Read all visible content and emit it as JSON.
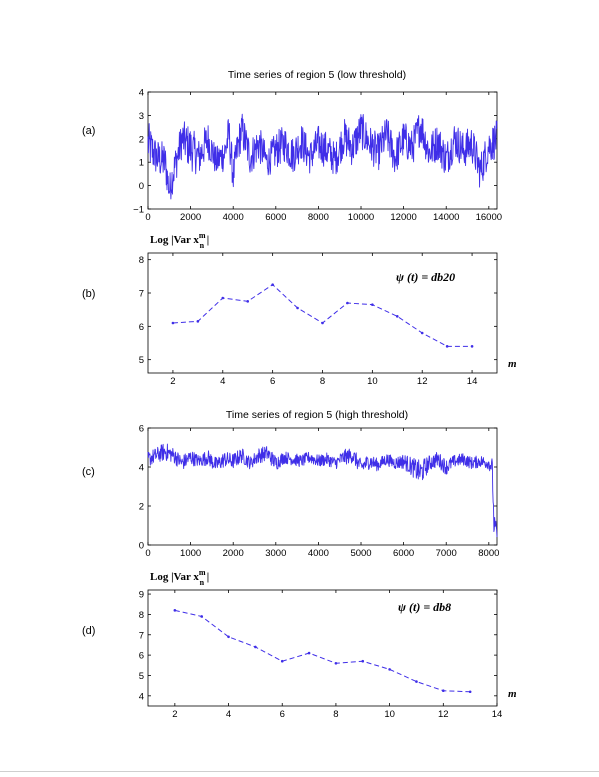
{
  "colors": {
    "series": "#3f2ee8",
    "axis": "#000000"
  },
  "chart_data": [
    {
      "panel_label": "(a)",
      "type": "line",
      "title": "Time series of region 5 (low threshold)",
      "xlim": [
        0,
        16384
      ],
      "ylim": [
        -1,
        4
      ],
      "xticks": [
        0,
        2000,
        4000,
        6000,
        8000,
        10000,
        12000,
        14000,
        16000
      ],
      "xtick_labels": [
        "0",
        "2000",
        "4000",
        "6000",
        "8000",
        "10000",
        "12000",
        "14000",
        "16000"
      ],
      "yticks": [
        -1,
        0,
        1,
        2,
        3,
        4
      ],
      "ytick_labels": [
        "−1",
        "0",
        "1",
        "2",
        "3",
        "4"
      ],
      "series": [
        {
          "x": [
            0,
            400,
            800,
            1000,
            1200,
            1600,
            2000,
            2400,
            2800,
            3200,
            3600,
            3800,
            4000,
            4200,
            4400,
            4800,
            5200,
            5600,
            6000,
            6400,
            6800,
            7200,
            7600,
            8000,
            8400,
            8800,
            9200,
            9600,
            10000,
            10400,
            10800,
            11200,
            11600,
            12000,
            12400,
            12800,
            13200,
            13600,
            14000,
            14400,
            14800,
            15200,
            15600,
            16000,
            16384
          ],
          "y": [
            1.8,
            1.2,
            1.0,
            -0.2,
            0.6,
            2.0,
            1.6,
            1.2,
            2.0,
            1.0,
            1.4,
            2.2,
            0.4,
            1.6,
            2.4,
            1.2,
            1.8,
            1.0,
            1.5,
            1.8,
            1.3,
            1.9,
            1.2,
            1.8,
            1.5,
            1.1,
            2.1,
            1.6,
            2.4,
            1.8,
            1.4,
            2.2,
            1.2,
            2.0,
            1.6,
            2.6,
            1.4,
            1.9,
            1.1,
            2.0,
            1.5,
            1.8,
            0.6,
            1.7,
            2.0
          ],
          "noise": [
            1.2,
            1.0,
            1.1,
            0.8,
            1.0,
            1.0,
            1.2,
            1.0,
            1.0,
            0.8,
            1.0,
            1.1,
            0.9,
            1.0,
            1.0,
            1.0,
            1.0,
            0.8,
            1.0,
            1.0,
            1.0,
            1.0,
            0.9,
            1.0,
            1.0,
            0.9,
            1.0,
            1.0,
            1.0,
            1.0,
            1.0,
            1.0,
            1.0,
            1.0,
            1.0,
            1.0,
            1.0,
            1.0,
            1.0,
            1.0,
            1.0,
            1.0,
            1.0,
            1.0,
            1.0
          ]
        }
      ]
    },
    {
      "panel_label": "(b)",
      "type": "line",
      "ylabel_main": "Log |Var x",
      "ylabel_sup": "m",
      "ylabel_sub": "n",
      "ylabel_end": " |",
      "xlabel": "m",
      "annotation": "ψ (t) = db20",
      "xlim": [
        1,
        15
      ],
      "ylim": [
        4.6,
        8.2
      ],
      "xticks": [
        2,
        4,
        6,
        8,
        10,
        12,
        14
      ],
      "xtick_labels": [
        "2",
        "4",
        "6",
        "8",
        "10",
        "12",
        "14"
      ],
      "yticks": [
        5,
        6,
        7,
        8
      ],
      "ytick_labels": [
        "5",
        "6",
        "7",
        "8"
      ],
      "series": [
        {
          "x": [
            2,
            3,
            4,
            5,
            6,
            7,
            8,
            9,
            10,
            11,
            12,
            13,
            14
          ],
          "y": [
            6.1,
            6.15,
            6.85,
            6.75,
            7.25,
            6.55,
            6.1,
            6.7,
            6.65,
            6.3,
            5.8,
            5.4,
            5.4
          ]
        }
      ]
    },
    {
      "panel_label": "(c)",
      "type": "line",
      "title": "Time series of region 5 (high threshold)",
      "xlim": [
        0,
        8192
      ],
      "ylim": [
        0,
        6
      ],
      "xticks": [
        0,
        1000,
        2000,
        3000,
        4000,
        5000,
        6000,
        7000,
        8000
      ],
      "xtick_labels": [
        "0",
        "1000",
        "2000",
        "3000",
        "4000",
        "5000",
        "6000",
        "7000",
        "8000"
      ],
      "yticks": [
        0,
        2,
        4,
        6
      ],
      "ytick_labels": [
        "0",
        "2",
        "4",
        "6"
      ],
      "series": [
        {
          "x": [
            0,
            200,
            400,
            600,
            800,
            1000,
            1200,
            1400,
            1600,
            1800,
            2000,
            2200,
            2400,
            2600,
            2800,
            3000,
            3200,
            3400,
            3600,
            3800,
            4000,
            4200,
            4400,
            4600,
            4800,
            5000,
            5200,
            5400,
            5600,
            5800,
            6000,
            6200,
            6400,
            6600,
            6800,
            7000,
            7200,
            7400,
            7600,
            7800,
            8000,
            8080,
            8120,
            8192
          ],
          "y": [
            4.4,
            4.6,
            4.8,
            4.6,
            4.2,
            4.5,
            4.3,
            4.5,
            4.1,
            4.4,
            4.3,
            4.6,
            4.2,
            4.6,
            4.7,
            4.2,
            4.5,
            4.4,
            4.3,
            4.5,
            4.3,
            4.4,
            4.2,
            4.5,
            4.6,
            4.0,
            4.3,
            4.1,
            4.4,
            4.2,
            4.3,
            4.0,
            3.7,
            4.2,
            4.4,
            4.0,
            4.3,
            4.4,
            4.2,
            4.3,
            4.2,
            4.0,
            1.0,
            0.6
          ],
          "noise": [
            0.5,
            0.5,
            0.6,
            0.5,
            0.5,
            0.5,
            0.4,
            0.5,
            0.5,
            0.5,
            0.5,
            0.5,
            0.4,
            0.5,
            0.5,
            0.5,
            0.4,
            0.4,
            0.4,
            0.4,
            0.4,
            0.4,
            0.4,
            0.5,
            0.5,
            0.5,
            0.5,
            0.4,
            0.4,
            0.4,
            0.5,
            0.6,
            0.8,
            0.5,
            0.5,
            0.5,
            0.4,
            0.4,
            0.4,
            0.4,
            0.4,
            0.6,
            0.8,
            0.5
          ]
        }
      ]
    },
    {
      "panel_label": "(d)",
      "type": "line",
      "ylabel_main": "Log |Var x",
      "ylabel_sup": "m",
      "ylabel_sub": "n",
      "ylabel_end": " |",
      "xlabel": "m",
      "annotation": "ψ (t) = db8",
      "xlim": [
        1,
        14
      ],
      "ylim": [
        3.5,
        9.2
      ],
      "xticks": [
        2,
        4,
        6,
        8,
        10,
        12,
        14
      ],
      "xtick_labels": [
        "2",
        "4",
        "6",
        "8",
        "10",
        "12",
        "14"
      ],
      "yticks": [
        4,
        5,
        6,
        7,
        8,
        9
      ],
      "ytick_labels": [
        "4",
        "5",
        "6",
        "7",
        "8",
        "9"
      ],
      "series": [
        {
          "x": [
            2,
            3,
            4,
            5,
            6,
            7,
            8,
            9,
            10,
            11,
            12,
            13
          ],
          "y": [
            8.2,
            7.9,
            6.9,
            6.4,
            5.7,
            6.1,
            5.6,
            5.7,
            5.3,
            4.7,
            4.25,
            4.2
          ]
        }
      ]
    }
  ]
}
